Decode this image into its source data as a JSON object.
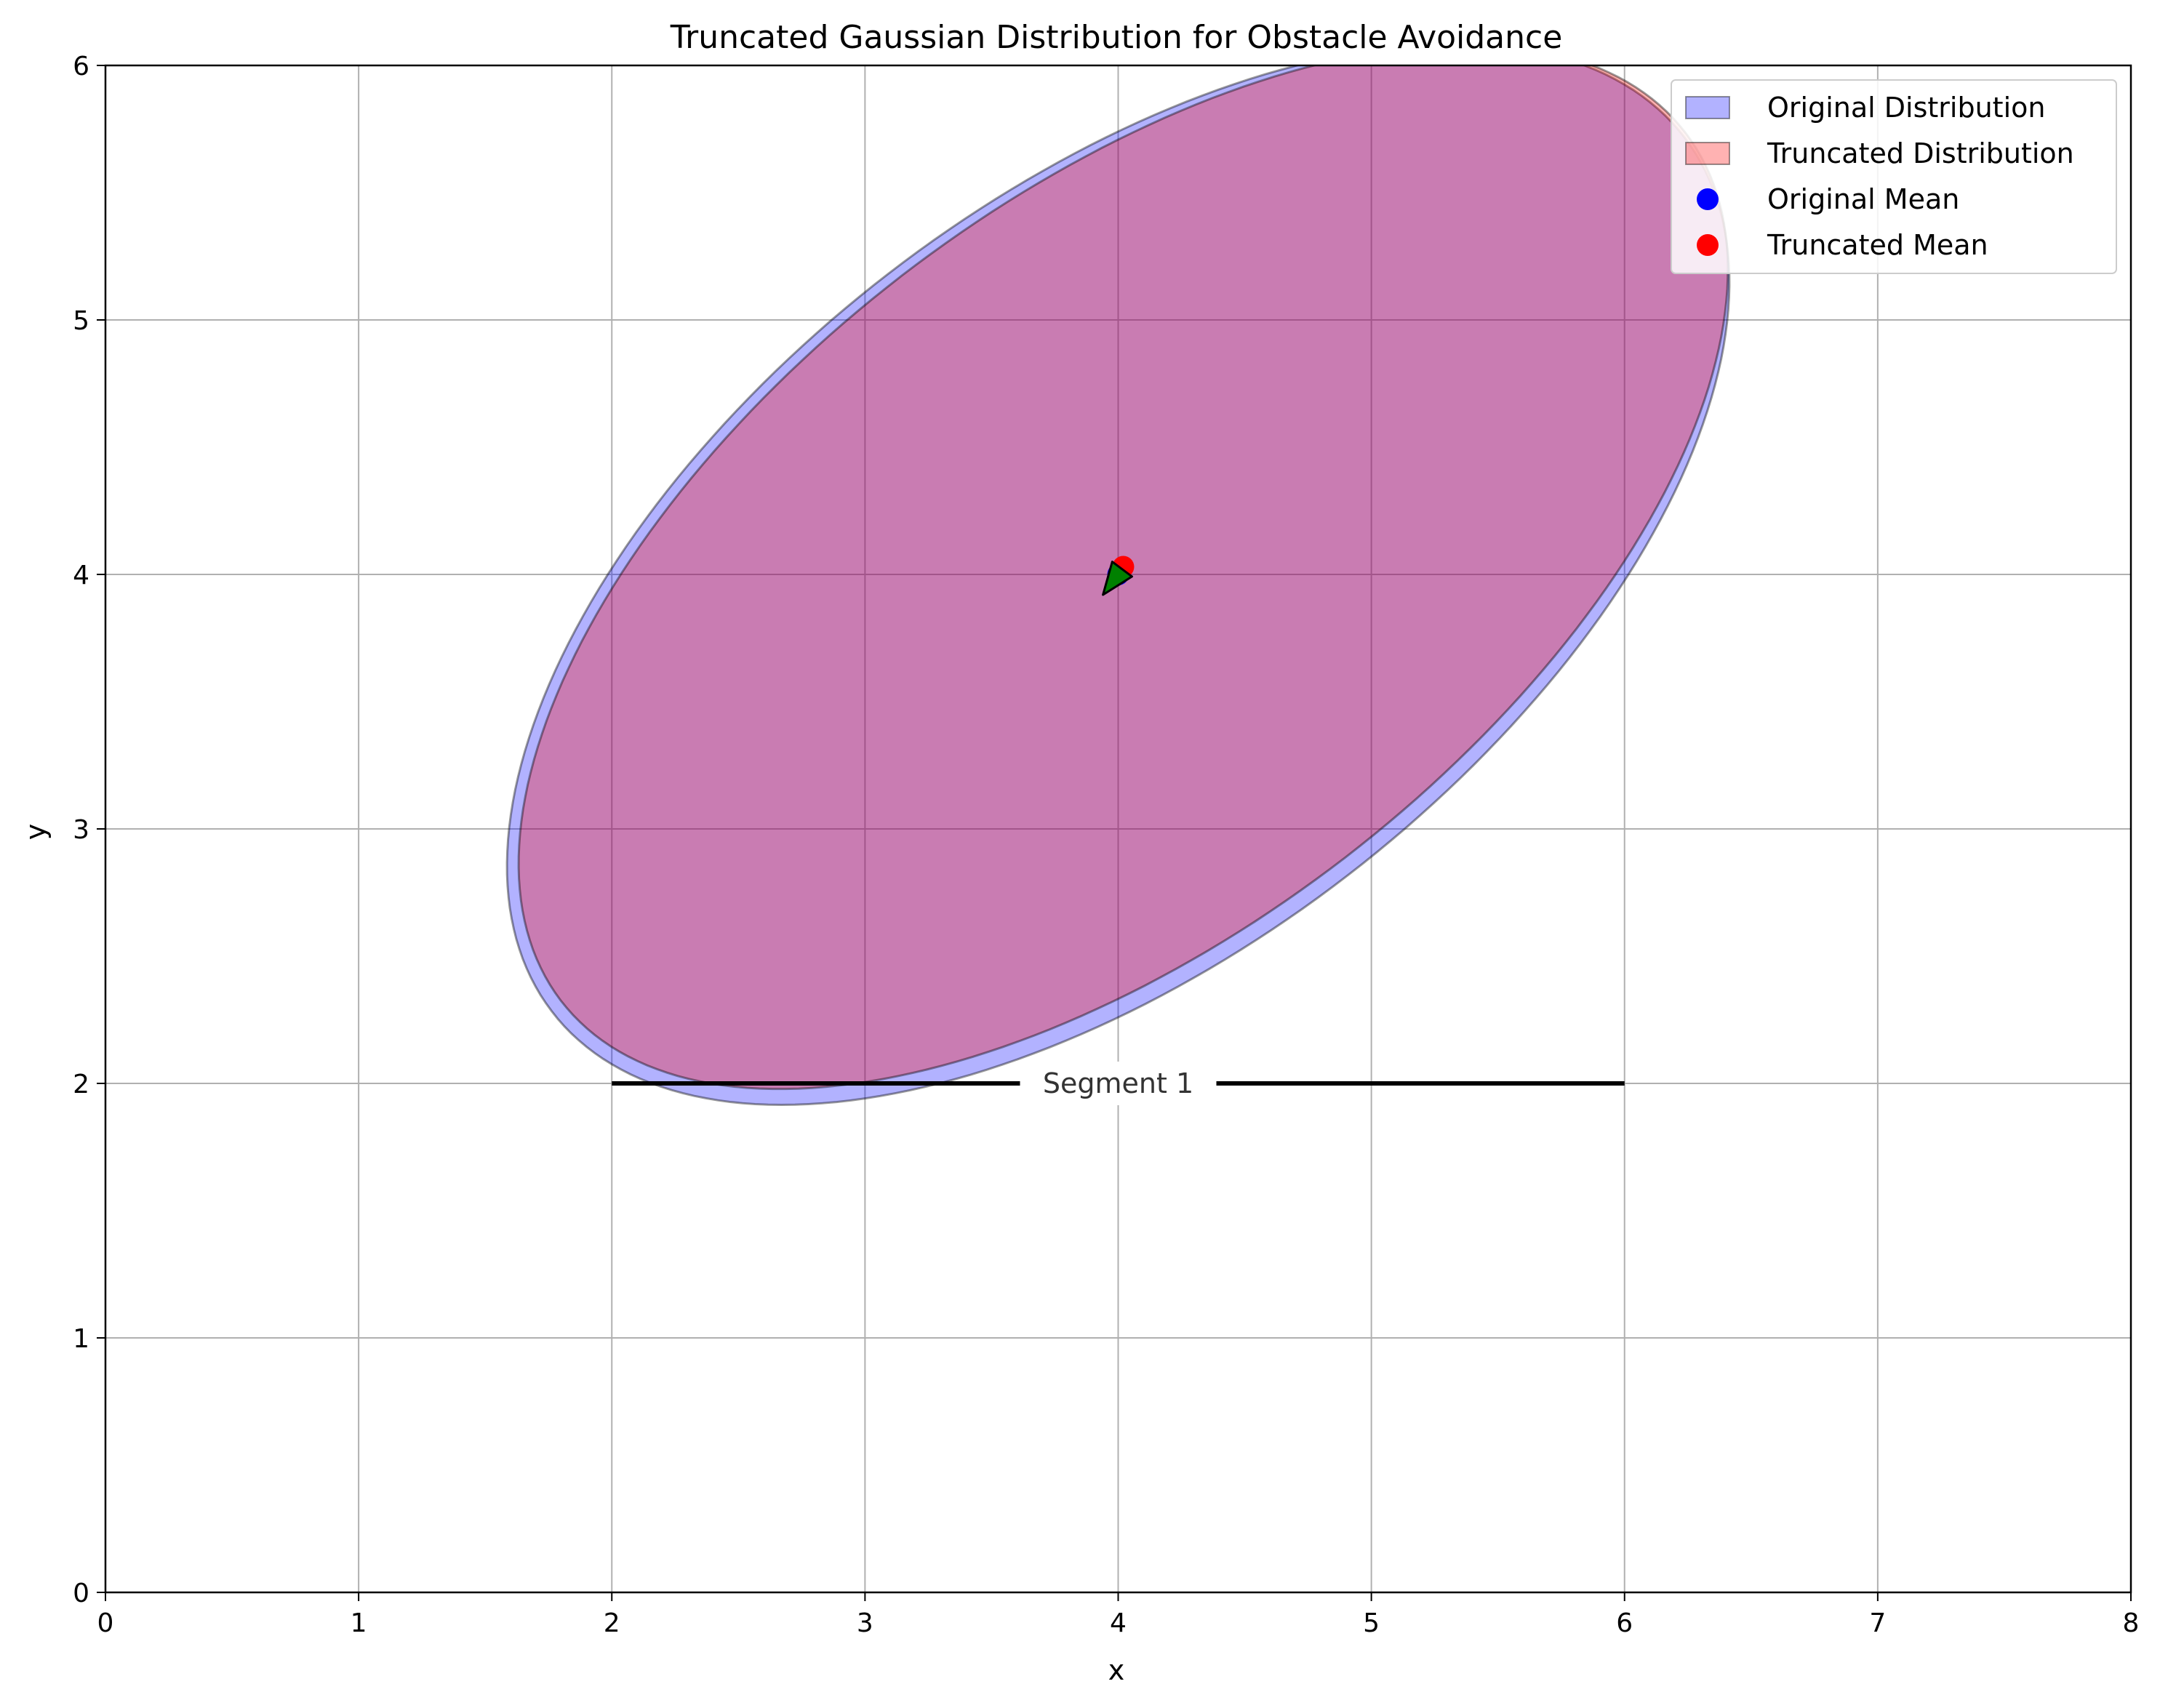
{
  "chart_data": {
    "type": "scatter",
    "title": "Truncated Gaussian Distribution for Obstacle Avoidance",
    "xlabel": "x",
    "ylabel": "y",
    "xlim": [
      0,
      8
    ],
    "ylim": [
      0,
      6
    ],
    "xticks": [
      "0",
      "1",
      "2",
      "3",
      "4",
      "5",
      "6",
      "7",
      "8"
    ],
    "yticks": [
      "0",
      "1",
      "2",
      "3",
      "4",
      "5",
      "6"
    ],
    "grid": true,
    "legend_position": "top-right",
    "legend": [
      {
        "label": "Original Distribution",
        "kind": "patch",
        "color": "#0000ff"
      },
      {
        "label": "Truncated Distribution",
        "kind": "patch",
        "color": "#ff0000"
      },
      {
        "label": "Original Mean",
        "kind": "marker",
        "color": "#0000ff"
      },
      {
        "label": "Truncated Mean",
        "kind": "marker",
        "color": "#ff0000"
      }
    ],
    "ellipses": [
      {
        "name": "Original Distribution",
        "cx": 4.0,
        "cy": 4.0,
        "rx": 2.82,
        "ry": 1.49,
        "angle_deg": 37.5,
        "fill": "#0000ff",
        "fill_opacity": 0.3
      },
      {
        "name": "Truncated Distribution",
        "cx": 4.02,
        "cy": 4.03,
        "rx": 2.8,
        "ry": 1.44,
        "angle_deg": 37.5,
        "fill": "#ff0000",
        "fill_opacity": 0.3
      }
    ],
    "points": [
      {
        "name": "Original Mean",
        "x": 4.0,
        "y": 4.0,
        "color": "#0000ff"
      },
      {
        "name": "Truncated Mean",
        "x": 4.02,
        "y": 4.03,
        "color": "#ff0000"
      }
    ],
    "arrow": {
      "from": [
        4.0,
        4.0
      ],
      "to": [
        3.94,
        3.92
      ],
      "color": "#008000"
    },
    "segments": [
      {
        "label": "Segment 1",
        "x": [
          2,
          6
        ],
        "y": [
          2,
          2
        ],
        "color": "#000000"
      }
    ]
  }
}
